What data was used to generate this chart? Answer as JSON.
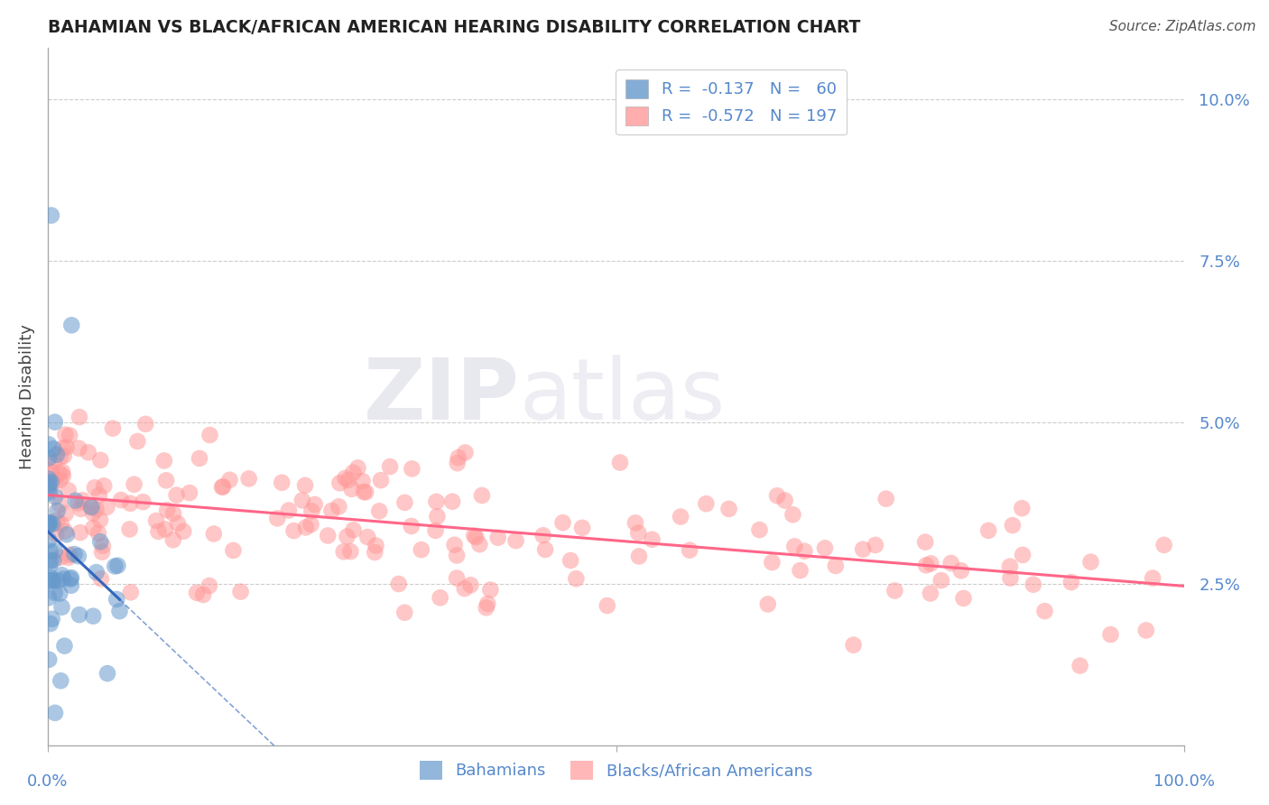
{
  "title": "BAHAMIAN VS BLACK/AFRICAN AMERICAN HEARING DISABILITY CORRELATION CHART",
  "source": "Source: ZipAtlas.com",
  "ylabel": "Hearing Disability",
  "xlim": [
    0.0,
    1.0
  ],
  "ylim": [
    0.0,
    0.108
  ],
  "blue_color": "#6699CC",
  "pink_color": "#FF9999",
  "blue_line_color": "#3366BB",
  "pink_line_color": "#FF6688",
  "axis_color": "#5588CC",
  "grid_color": "#CCCCCC"
}
